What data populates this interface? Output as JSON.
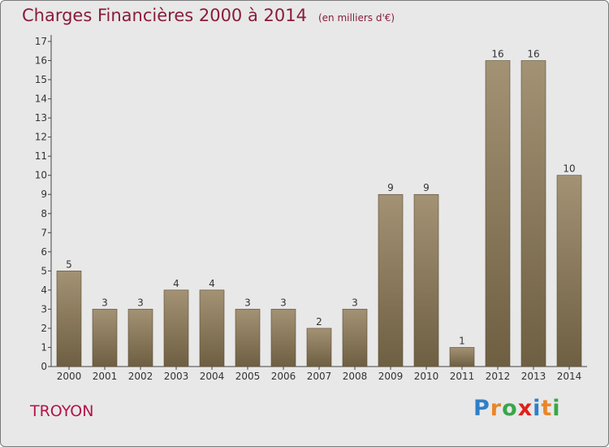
{
  "header": {
    "title": "Charges Financières 2000 à 2014",
    "subtitle": "(en milliers d'€)"
  },
  "footer": {
    "town": "TROYON",
    "brand": "Proxiti",
    "brand_colors": [
      "#2f7fc8",
      "#e8862a",
      "#3aa64a",
      "#e0201a",
      "#2f7fc8",
      "#e8862a",
      "#3aa64a"
    ]
  },
  "chart_data": {
    "type": "bar",
    "categories": [
      "2000",
      "2001",
      "2002",
      "2003",
      "2004",
      "2005",
      "2006",
      "2007",
      "2008",
      "2009",
      "2010",
      "2011",
      "2012",
      "2013",
      "2014"
    ],
    "values": [
      5,
      3,
      3,
      4,
      4,
      3,
      3,
      2,
      3,
      9,
      9,
      1,
      16,
      16,
      10
    ],
    "ylim": [
      0,
      17
    ],
    "yticks": [
      "0",
      "1",
      "2",
      "3",
      "4",
      "5",
      "6",
      "7",
      "8",
      "9",
      "10",
      "11",
      "12",
      "13",
      "14",
      "15",
      "16",
      "17"
    ],
    "bar_color_top": "#a39274",
    "bar_color_bottom": "#6f5f42",
    "grid": false
  }
}
